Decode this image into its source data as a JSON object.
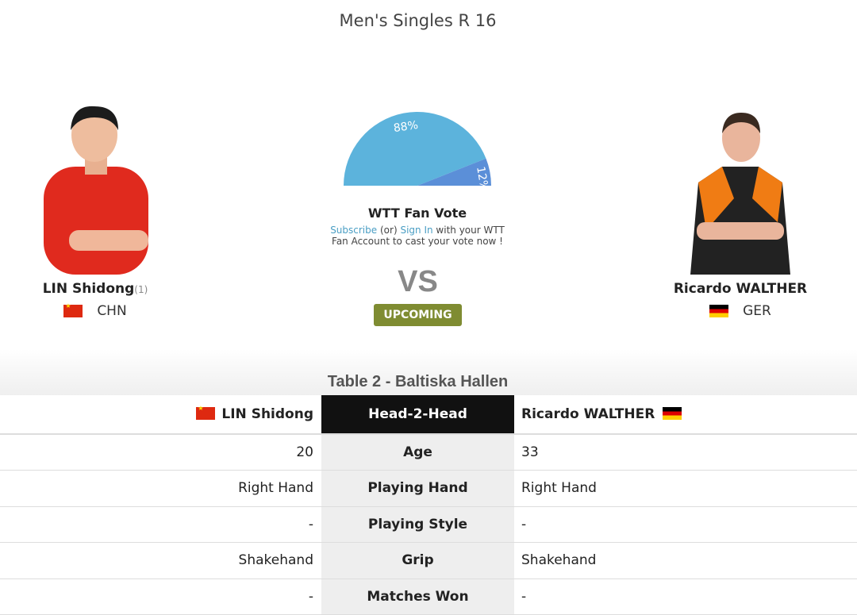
{
  "title": "Men's Singles R 16",
  "player1": {
    "name": "LIN Shidong",
    "seed": "(1)",
    "country": "CHN",
    "flag": "china-flag"
  },
  "player2": {
    "name": "Ricardo WALTHER",
    "country": "GER",
    "flag": "germany-flag"
  },
  "fan_vote": {
    "title": "WTT Fan Vote",
    "subscribe": "Subscribe",
    "or": "(or)",
    "sign_in": "Sign In",
    "text": "with your WTT Fan Account to cast your vote now !",
    "p1_pct": 88,
    "p2_pct": 12,
    "p1_label": "88%",
    "p2_label": "12%",
    "colors": {
      "p1": "#5cb3dc",
      "p2": "#5b8fd8"
    }
  },
  "vs": "VS",
  "status": "UPCOMING",
  "venue": "Table 2 - Baltiska Hallen",
  "h2h": {
    "header": "Head-2-Head",
    "rows": [
      {
        "label": "Age",
        "p1": "20",
        "p2": "33"
      },
      {
        "label": "Playing Hand",
        "p1": "Right Hand",
        "p2": "Right Hand"
      },
      {
        "label": "Playing Style",
        "p1": "-",
        "p2": "-"
      },
      {
        "label": "Grip",
        "p1": "Shakehand",
        "p2": "Shakehand"
      },
      {
        "label": "Matches Won",
        "p1": "-",
        "p2": "-"
      }
    ]
  }
}
